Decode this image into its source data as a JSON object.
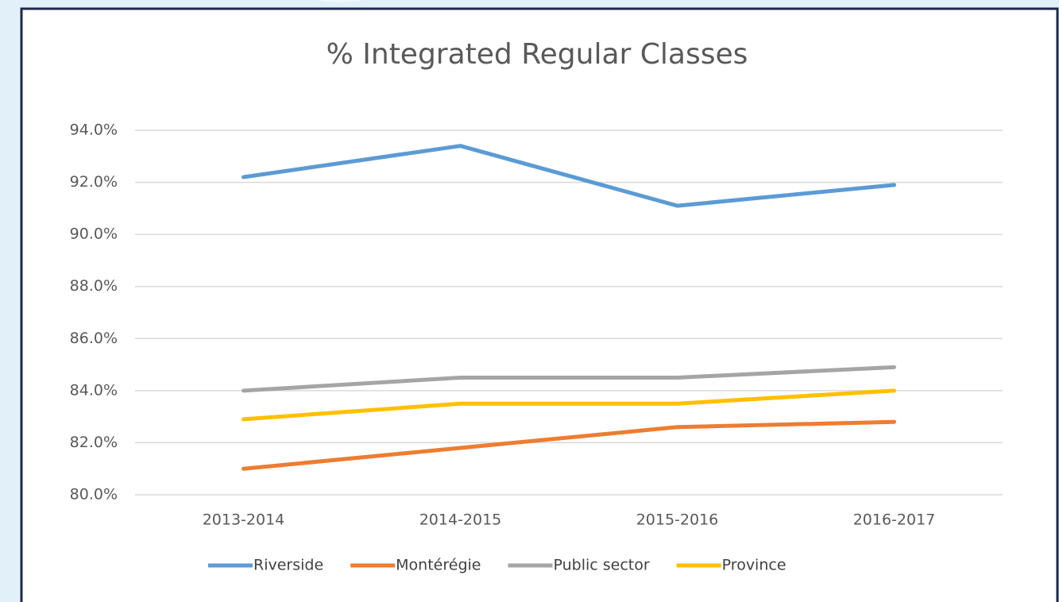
{
  "chart_data": {
    "type": "line",
    "title": "% Integrated Regular Classes",
    "categories": [
      "2013-2014",
      "2014-2015",
      "2015-2016",
      "2016-2017"
    ],
    "series": [
      {
        "name": "Riverside",
        "color": "#5b9bd5",
        "values": [
          92.2,
          93.4,
          91.1,
          91.9
        ]
      },
      {
        "name": "Montérégie",
        "color": "#ed7d31",
        "values": [
          81.0,
          81.8,
          82.6,
          82.8
        ]
      },
      {
        "name": "Public sector",
        "color": "#a5a5a5",
        "values": [
          84.0,
          84.5,
          84.5,
          84.9
        ]
      },
      {
        "name": "Province",
        "color": "#ffc000",
        "values": [
          82.9,
          83.5,
          83.5,
          84.0
        ]
      }
    ],
    "ylim": [
      80,
      94
    ],
    "yticks": [
      {
        "value": 80,
        "label": "80.0%"
      },
      {
        "value": 82,
        "label": "82.0%"
      },
      {
        "value": 84,
        "label": "84.0%"
      },
      {
        "value": 86,
        "label": "86.0%"
      },
      {
        "value": 88,
        "label": "88.0%"
      },
      {
        "value": 90,
        "label": "90.0%"
      },
      {
        "value": 92,
        "label": "92.0%"
      },
      {
        "value": 94,
        "label": "94.0%"
      }
    ],
    "grid": true,
    "legend": "bottom"
  }
}
